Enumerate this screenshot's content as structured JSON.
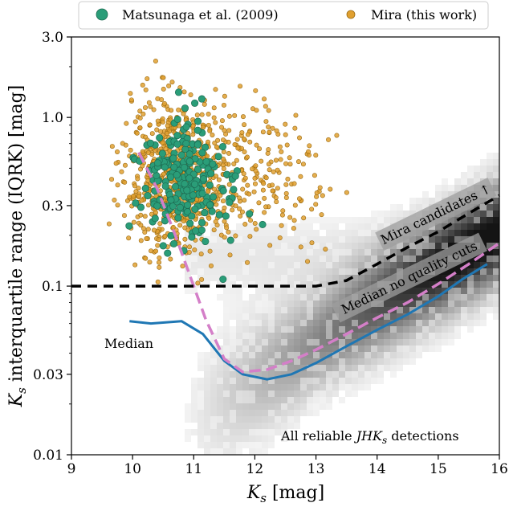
{
  "chart_data": {
    "type": "scatter",
    "title": "",
    "xlabel": "K_s [mag]",
    "ylabel": "K_s interquartile range (IQRK) [mag]",
    "x_tick_labels": [
      "9",
      "10",
      "11",
      "12",
      "13",
      "14",
      "15",
      "16"
    ],
    "y_tick_labels": [
      "0.01",
      "0.03",
      "0.1",
      "0.3",
      "1.0",
      "3.0"
    ],
    "xlim": [
      9,
      16
    ],
    "ylim": [
      0.01,
      3.0
    ],
    "yscale": "log",
    "legend": {
      "position": "top-outside",
      "entries": [
        {
          "label": "Matsunaga et al. (2009)",
          "color": "#2a9d78"
        },
        {
          "label": "Mira (this work)",
          "color": "#e0a030"
        }
      ]
    },
    "annotations": {
      "median": "Median",
      "median_no_cuts": "Median no quality cuts",
      "mira_candidates": "Mira candidates ↑",
      "all_reliable_prefix": "All reliable ",
      "all_reliable_suffix": " detections"
    },
    "series": [
      {
        "name": "Median",
        "style": "solid",
        "color": "#1f77b4",
        "x": [
          9.95,
          10.3,
          10.8,
          11.15,
          11.5,
          11.8,
          12.2,
          12.6,
          13.0,
          13.5,
          14.0,
          14.5,
          15.0,
          15.4,
          15.8
        ],
        "y": [
          0.062,
          0.06,
          0.062,
          0.052,
          0.036,
          0.03,
          0.028,
          0.03,
          0.035,
          0.044,
          0.055,
          0.068,
          0.087,
          0.11,
          0.135
        ]
      },
      {
        "name": "Median no quality cuts",
        "style": "dashed",
        "color": "#d47fc8",
        "x": [
          10.1,
          10.4,
          10.7,
          11.0,
          11.2,
          11.5,
          11.8,
          12.2,
          12.6,
          13.0,
          13.5,
          14.0,
          14.5,
          15.0,
          15.5,
          16.0
        ],
        "y": [
          0.62,
          0.38,
          0.2,
          0.1,
          0.063,
          0.037,
          0.031,
          0.032,
          0.036,
          0.042,
          0.052,
          0.065,
          0.08,
          0.103,
          0.135,
          0.18
        ]
      },
      {
        "name": "Mira candidates",
        "style": "dashed",
        "color": "#000000",
        "x": [
          9.0,
          10.0,
          11.0,
          12.0,
          13.0,
          13.5,
          14.0,
          14.5,
          15.0,
          15.5,
          16.0
        ],
        "y": [
          0.1,
          0.1,
          0.1,
          0.1,
          0.1,
          0.108,
          0.135,
          0.17,
          0.21,
          0.27,
          0.345
        ]
      }
    ]
  }
}
